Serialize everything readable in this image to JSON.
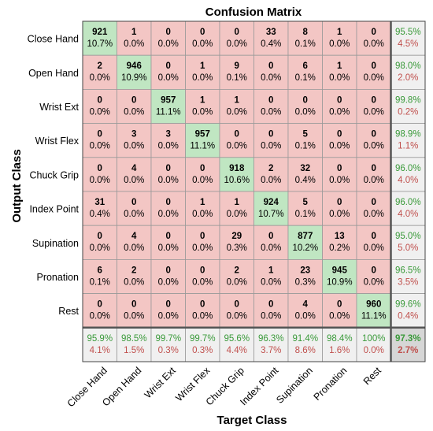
{
  "chart_data": {
    "type": "heatmap",
    "title": "Confusion Matrix",
    "xlabel": "Target Class",
    "ylabel": "Output Class",
    "classes": [
      "Close Hand",
      "Open Hand",
      "Wrist Ext",
      "Wrist Flex",
      "Chuck Grip",
      "Index Point",
      "Supination",
      "Pronation",
      "Rest"
    ],
    "matrix": [
      [
        921,
        1,
        0,
        0,
        0,
        33,
        8,
        1,
        0
      ],
      [
        2,
        946,
        0,
        1,
        9,
        0,
        6,
        1,
        0
      ],
      [
        0,
        0,
        957,
        1,
        1,
        0,
        0,
        0,
        0
      ],
      [
        0,
        3,
        3,
        957,
        0,
        0,
        5,
        0,
        0
      ],
      [
        0,
        4,
        0,
        0,
        918,
        2,
        32,
        0,
        0
      ],
      [
        31,
        0,
        0,
        1,
        1,
        924,
        5,
        0,
        0
      ],
      [
        0,
        4,
        0,
        0,
        29,
        0,
        877,
        13,
        0
      ],
      [
        6,
        2,
        0,
        0,
        2,
        1,
        23,
        945,
        0
      ],
      [
        0,
        0,
        0,
        0,
        0,
        0,
        4,
        0,
        960
      ]
    ],
    "matrix_percent": [
      [
        "10.7%",
        "0.0%",
        "0.0%",
        "0.0%",
        "0.0%",
        "0.4%",
        "0.1%",
        "0.0%",
        "0.0%"
      ],
      [
        "0.0%",
        "10.9%",
        "0.0%",
        "0.0%",
        "0.1%",
        "0.0%",
        "0.1%",
        "0.0%",
        "0.0%"
      ],
      [
        "0.0%",
        "0.0%",
        "11.1%",
        "0.0%",
        "0.0%",
        "0.0%",
        "0.0%",
        "0.0%",
        "0.0%"
      ],
      [
        "0.0%",
        "0.0%",
        "0.0%",
        "11.1%",
        "0.0%",
        "0.0%",
        "0.1%",
        "0.0%",
        "0.0%"
      ],
      [
        "0.0%",
        "0.0%",
        "0.0%",
        "0.0%",
        "10.6%",
        "0.0%",
        "0.4%",
        "0.0%",
        "0.0%"
      ],
      [
        "0.4%",
        "0.0%",
        "0.0%",
        "0.0%",
        "0.0%",
        "10.7%",
        "0.1%",
        "0.0%",
        "0.0%"
      ],
      [
        "0.0%",
        "0.0%",
        "0.0%",
        "0.0%",
        "0.3%",
        "0.0%",
        "10.2%",
        "0.2%",
        "0.0%"
      ],
      [
        "0.1%",
        "0.0%",
        "0.0%",
        "0.0%",
        "0.0%",
        "0.0%",
        "0.3%",
        "10.9%",
        "0.0%"
      ],
      [
        "0.0%",
        "0.0%",
        "0.0%",
        "0.0%",
        "0.0%",
        "0.0%",
        "0.0%",
        "0.0%",
        "11.1%"
      ]
    ],
    "row_summary": [
      [
        "95.5%",
        "4.5%"
      ],
      [
        "98.0%",
        "2.0%"
      ],
      [
        "99.8%",
        "0.2%"
      ],
      [
        "98.9%",
        "1.1%"
      ],
      [
        "96.0%",
        "4.0%"
      ],
      [
        "96.0%",
        "4.0%"
      ],
      [
        "95.0%",
        "5.0%"
      ],
      [
        "96.5%",
        "3.5%"
      ],
      [
        "99.6%",
        "0.4%"
      ]
    ],
    "col_summary": [
      [
        "95.9%",
        "4.1%"
      ],
      [
        "98.5%",
        "1.5%"
      ],
      [
        "99.7%",
        "0.3%"
      ],
      [
        "99.7%",
        "0.3%"
      ],
      [
        "95.6%",
        "4.4%"
      ],
      [
        "96.3%",
        "3.7%"
      ],
      [
        "91.4%",
        "8.6%"
      ],
      [
        "98.4%",
        "1.6%"
      ],
      [
        "100%",
        "0.0%"
      ]
    ],
    "overall": [
      "97.3%",
      "2.7%"
    ],
    "colors": {
      "correct": "#c0e6c2",
      "incorrect": "#f3c6c4",
      "summary": "#f0f0f0",
      "overall": "#d6d6d6",
      "good_text": "#3a9a3a",
      "bad_text": "#c0504d",
      "grid": "#9a9a9a",
      "summary_border": "#555555"
    }
  }
}
